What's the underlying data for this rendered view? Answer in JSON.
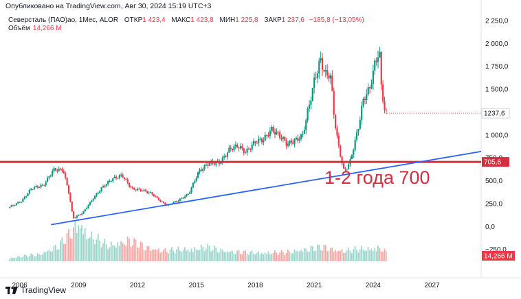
{
  "header": {
    "published": "Опубликовано на TradingView.com, Авг 30, 2024 15:19 UTC+3"
  },
  "legend": {
    "symbol": "Северсталь (ПАО)ао, 1Мес, ALOR",
    "open_label": "ОТКР",
    "open": "1 423,4",
    "high_label": "МАКС",
    "high": "1 423,8",
    "low_label": "МИН",
    "low": "1 225,8",
    "close_label": "ЗАКР",
    "close": "1 237,6",
    "change": "−185,8 (−13,05%)",
    "volume_label": "Объём",
    "volume": "14,266 M"
  },
  "footer": {
    "brand": "TradingView"
  },
  "colors": {
    "up": "#089981",
    "down": "#f23645",
    "vol_up": "#9fd6cc",
    "vol_down": "#f7a9a7",
    "trend": "#2962ff",
    "level": "#d32f3f",
    "annotation": "#d32f3f"
  },
  "chart_data": {
    "type": "candlestick",
    "title": "Северсталь (ПАО)ао, 1Мес",
    "y_ticks": [
      "2 250,0",
      "2 000,0",
      "1 750,0",
      "1 500,0",
      "1 250,0",
      "1 000,0",
      "750,0",
      "500,0",
      "250,0",
      "0,0",
      "−250,0"
    ],
    "y_tick_values": [
      2250,
      2000,
      1750,
      1500,
      1250,
      1000,
      750,
      500,
      250,
      0,
      -250
    ],
    "ylim": [
      -560,
      2340
    ],
    "x_ticks": [
      "2006",
      "2009",
      "2012",
      "2015",
      "2018",
      "2021",
      "2024",
      "2027"
    ],
    "x_tick_years": [
      2006,
      2009,
      2012,
      2015,
      2018,
      2021,
      2024,
      2027
    ],
    "xlim": [
      2005.0,
      2029.5
    ],
    "price_path": [
      [
        2005.5,
        205
      ],
      [
        2006.2,
        280
      ],
      [
        2006.7,
        420
      ],
      [
        2007.3,
        450
      ],
      [
        2007.8,
        620
      ],
      [
        2008.3,
        620
      ],
      [
        2008.6,
        360
      ],
      [
        2008.8,
        90
      ],
      [
        2009.3,
        150
      ],
      [
        2009.8,
        300
      ],
      [
        2010.3,
        430
      ],
      [
        2010.8,
        520
      ],
      [
        2011.3,
        560
      ],
      [
        2011.8,
        410
      ],
      [
        2012.3,
        400
      ],
      [
        2012.8,
        360
      ],
      [
        2013.3,
        270
      ],
      [
        2013.6,
        230
      ],
      [
        2014.2,
        290
      ],
      [
        2014.7,
        360
      ],
      [
        2015.2,
        600
      ],
      [
        2015.7,
        690
      ],
      [
        2016.3,
        700
      ],
      [
        2016.8,
        850
      ],
      [
        2017.2,
        880
      ],
      [
        2017.6,
        810
      ],
      [
        2018.1,
        930
      ],
      [
        2018.5,
        950
      ],
      [
        2018.9,
        1060
      ],
      [
        2019.3,
        1000
      ],
      [
        2019.7,
        900
      ],
      [
        2020.2,
        950
      ],
      [
        2020.5,
        1000
      ],
      [
        2020.8,
        1300
      ],
      [
        2021.1,
        1600
      ],
      [
        2021.4,
        1820
      ],
      [
        2021.7,
        1640
      ],
      [
        2021.9,
        1680
      ],
      [
        2022.1,
        1200
      ],
      [
        2022.3,
        900
      ],
      [
        2022.6,
        600
      ],
      [
        2022.9,
        700
      ],
      [
        2023.3,
        1050
      ],
      [
        2023.6,
        1400
      ],
      [
        2023.9,
        1500
      ],
      [
        2024.2,
        1800
      ],
      [
        2024.4,
        1930
      ],
      [
        2024.5,
        1530
      ],
      [
        2024.7,
        1237.6
      ]
    ],
    "volume_path": [
      [
        2005.5,
        2
      ],
      [
        2007.0,
        4
      ],
      [
        2008.0,
        9
      ],
      [
        2008.6,
        16
      ],
      [
        2009.0,
        23
      ],
      [
        2009.5,
        15
      ],
      [
        2010.5,
        9
      ],
      [
        2011.5,
        12
      ],
      [
        2012.5,
        8
      ],
      [
        2013.5,
        6
      ],
      [
        2014.5,
        7
      ],
      [
        2015.5,
        8
      ],
      [
        2016.5,
        6
      ],
      [
        2017.5,
        5
      ],
      [
        2018.5,
        5
      ],
      [
        2019.5,
        5
      ],
      [
        2020.5,
        7
      ],
      [
        2021.5,
        8
      ],
      [
        2022.5,
        6
      ],
      [
        2023.5,
        7
      ],
      [
        2024.3,
        8
      ],
      [
        2024.7,
        5
      ]
    ],
    "trendline": {
      "from": [
        2007.6,
        20
      ],
      "to": [
        2029.5,
        820
      ]
    },
    "level": {
      "value": 705.6,
      "label": "705,6"
    },
    "last_price_label": "1237,6",
    "last_volume_label": "14,266 M",
    "annotation": "1-2 года 700"
  }
}
